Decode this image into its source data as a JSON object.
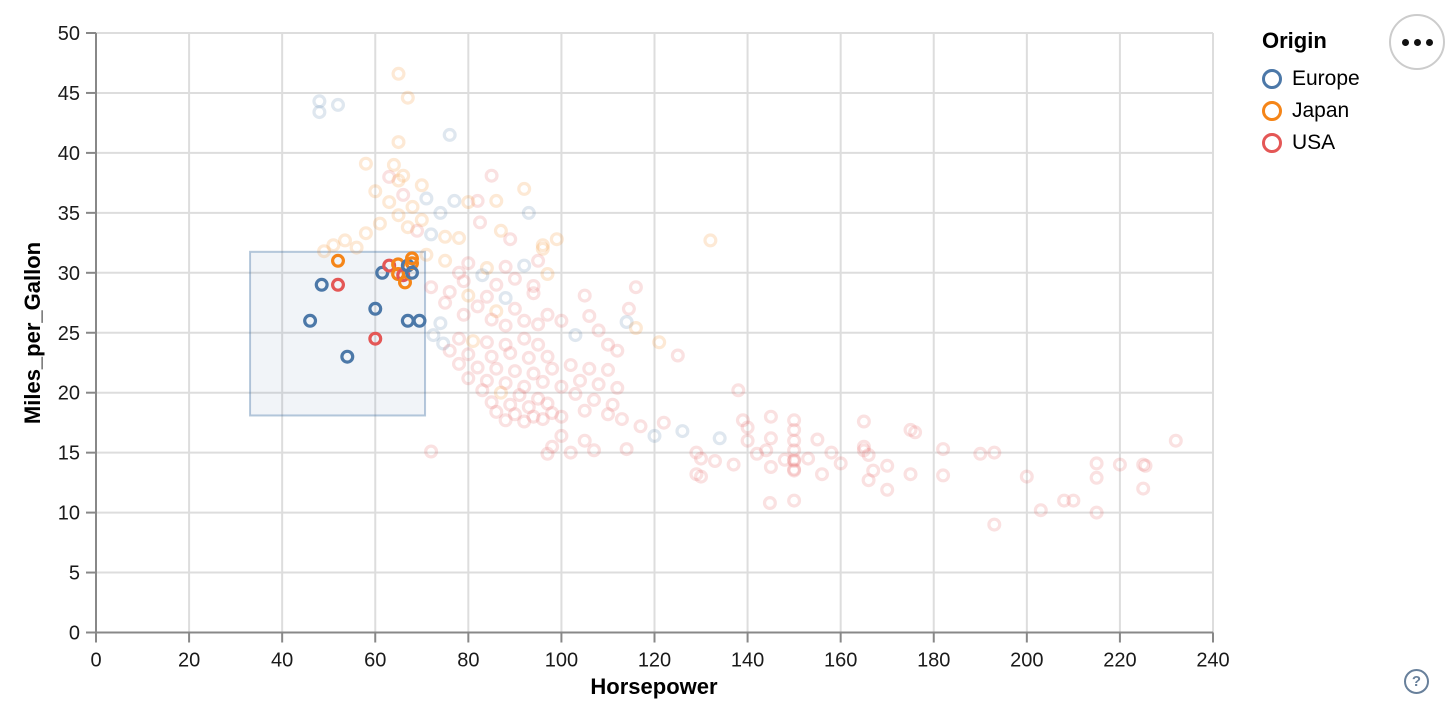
{
  "controls": {
    "menu_button": "options-menu",
    "help_label": "?"
  },
  "chart_data": {
    "type": "scatter",
    "xlabel": "Horsepower",
    "ylabel": "Miles_per_Gallon",
    "xlim": [
      0,
      240
    ],
    "ylim": [
      0,
      50
    ],
    "x_ticks": [
      0,
      20,
      40,
      60,
      80,
      100,
      120,
      140,
      160,
      180,
      200,
      220,
      240
    ],
    "y_ticks": [
      0,
      5,
      10,
      15,
      20,
      25,
      30,
      35,
      40,
      45,
      50
    ],
    "grid": true,
    "grid_color": "#dddddd",
    "axis_color": "#888888",
    "legend": {
      "title": "Origin",
      "position": "right",
      "items": [
        {
          "label": "Europe",
          "color": "#4c78a8"
        },
        {
          "label": "Japan",
          "color": "#f58518"
        },
        {
          "label": "USA",
          "color": "#e45756"
        }
      ]
    },
    "origin_codes": {
      "E": "Europe",
      "J": "Japan",
      "U": "USA"
    },
    "origin_colors": {
      "E": "#4c78a8",
      "J": "#f58518",
      "U": "#e45756"
    },
    "unselected_opacity": 0.18,
    "brush": {
      "x": [
        33.1,
        70.7
      ],
      "y": [
        18.1,
        31.75
      ],
      "fill": "#4c78a8",
      "fill_opacity": 0.08,
      "stroke": "#4c78a8",
      "stroke_opacity": 0.4
    },
    "points": [
      [
        65,
        46.6,
        "J",
        0
      ],
      [
        48,
        44.3,
        "E",
        0
      ],
      [
        48,
        43.4,
        "E",
        0
      ],
      [
        52,
        44,
        "E",
        0
      ],
      [
        67,
        44.6,
        "J",
        0
      ],
      [
        76,
        41.5,
        "E",
        0
      ],
      [
        65,
        40.9,
        "J",
        0
      ],
      [
        58,
        39.1,
        "J",
        0
      ],
      [
        64,
        39,
        "J",
        0
      ],
      [
        66,
        38.1,
        "J",
        0
      ],
      [
        63,
        38,
        "U",
        0
      ],
      [
        65,
        37.7,
        "J",
        0
      ],
      [
        70,
        37.3,
        "J",
        0
      ],
      [
        60,
        36.8,
        "J",
        0
      ],
      [
        66,
        36.5,
        "U",
        0
      ],
      [
        71,
        36.2,
        "E",
        0
      ],
      [
        63,
        35.9,
        "J",
        0
      ],
      [
        68,
        35.5,
        "J",
        0
      ],
      [
        74,
        35,
        "E",
        0
      ],
      [
        65,
        34.8,
        "J",
        0
      ],
      [
        70,
        34.4,
        "J",
        0
      ],
      [
        61,
        34.1,
        "J",
        0
      ],
      [
        67,
        33.8,
        "J",
        0
      ],
      [
        72,
        33.2,
        "E",
        0
      ],
      [
        69,
        33.5,
        "U",
        0
      ],
      [
        58,
        33.3,
        "J",
        0
      ],
      [
        75,
        33,
        "J",
        0
      ],
      [
        78,
        32.9,
        "J",
        0
      ],
      [
        77,
        36,
        "E",
        0
      ],
      [
        51,
        32.3,
        "J",
        0
      ],
      [
        53.5,
        32.7,
        "J",
        0
      ],
      [
        49,
        31.8,
        "J",
        0
      ],
      [
        56,
        32.1,
        "J",
        0
      ],
      [
        85,
        38.1,
        "U",
        0
      ],
      [
        92,
        37,
        "J",
        0
      ],
      [
        82,
        36,
        "U",
        0
      ],
      [
        86,
        36,
        "J",
        0
      ],
      [
        80,
        35.9,
        "J",
        0
      ],
      [
        93,
        35,
        "E",
        0
      ],
      [
        82.5,
        34.2,
        "U",
        0
      ],
      [
        87,
        33.5,
        "J",
        0
      ],
      [
        89,
        32.8,
        "U",
        0
      ],
      [
        96,
        32.3,
        "J",
        0
      ],
      [
        99,
        32.8,
        "J",
        0
      ],
      [
        96,
        32,
        "J",
        0
      ],
      [
        71,
        31.5,
        "J",
        0
      ],
      [
        75,
        31,
        "J",
        0
      ],
      [
        80,
        30.8,
        "U",
        0
      ],
      [
        84,
        30.4,
        "J",
        0
      ],
      [
        78,
        30,
        "U",
        0
      ],
      [
        88,
        30.5,
        "U",
        0
      ],
      [
        92,
        30.6,
        "E",
        0
      ],
      [
        95,
        31,
        "U",
        0
      ],
      [
        83,
        29.8,
        "E",
        0
      ],
      [
        90,
        29.5,
        "U",
        0
      ],
      [
        97,
        29.9,
        "J",
        0
      ],
      [
        79,
        29.3,
        "U",
        0
      ],
      [
        86,
        29,
        "U",
        0
      ],
      [
        94,
        28.9,
        "U",
        0
      ],
      [
        72,
        28.8,
        "U",
        0
      ],
      [
        76,
        28.4,
        "U",
        0
      ],
      [
        80,
        28.1,
        "J",
        0
      ],
      [
        84,
        28,
        "U",
        0
      ],
      [
        88,
        27.9,
        "E",
        0
      ],
      [
        75,
        27.5,
        "U",
        0
      ],
      [
        82,
        27.2,
        "U",
        0
      ],
      [
        90,
        27,
        "U",
        0
      ],
      [
        94,
        28.3,
        "U",
        0
      ],
      [
        86,
        26.8,
        "J",
        0
      ],
      [
        79,
        26.5,
        "U",
        0
      ],
      [
        85,
        26.1,
        "U",
        0
      ],
      [
        92,
        26,
        "U",
        0
      ],
      [
        97,
        26.5,
        "U",
        0
      ],
      [
        100,
        26,
        "U",
        0
      ],
      [
        74,
        25.8,
        "E",
        0
      ],
      [
        88,
        25.6,
        "U",
        0
      ],
      [
        95,
        25.7,
        "U",
        0
      ],
      [
        105,
        28.1,
        "U",
        0
      ],
      [
        106,
        26.4,
        "U",
        0
      ],
      [
        116,
        28.8,
        "U",
        0
      ],
      [
        114.5,
        27,
        "U",
        0
      ],
      [
        114,
        25.9,
        "E",
        0
      ],
      [
        116,
        25.4,
        "J",
        0
      ],
      [
        121,
        24.2,
        "J",
        0
      ],
      [
        125,
        23.1,
        "U",
        0
      ],
      [
        110,
        24,
        "U",
        0
      ],
      [
        108,
        25.2,
        "U",
        0
      ],
      [
        103,
        24.8,
        "E",
        0
      ],
      [
        112,
        23.5,
        "U",
        0
      ],
      [
        132,
        32.7,
        "J",
        0
      ],
      [
        72.5,
        24.8,
        "E",
        0
      ],
      [
        74.6,
        24.1,
        "E",
        0
      ],
      [
        78,
        24.5,
        "U",
        0
      ],
      [
        81,
        24.3,
        "J",
        0
      ],
      [
        84,
        24.2,
        "U",
        0
      ],
      [
        88,
        24,
        "U",
        0
      ],
      [
        92,
        24.5,
        "U",
        0
      ],
      [
        95,
        24,
        "U",
        0
      ],
      [
        76,
        23.5,
        "U",
        0
      ],
      [
        80,
        23.2,
        "U",
        0
      ],
      [
        85,
        23,
        "U",
        0
      ],
      [
        89,
        23.3,
        "U",
        0
      ],
      [
        93,
        22.9,
        "U",
        0
      ],
      [
        97,
        23,
        "U",
        0
      ],
      [
        78,
        22.4,
        "U",
        0
      ],
      [
        82,
        22.1,
        "U",
        0
      ],
      [
        86,
        22,
        "U",
        0
      ],
      [
        90,
        21.8,
        "U",
        0
      ],
      [
        94,
        21.6,
        "U",
        0
      ],
      [
        98,
        22,
        "U",
        0
      ],
      [
        80,
        21.2,
        "U",
        0
      ],
      [
        84,
        21,
        "U",
        0
      ],
      [
        88,
        20.8,
        "U",
        0
      ],
      [
        92,
        20.5,
        "U",
        0
      ],
      [
        96,
        20.9,
        "U",
        0
      ],
      [
        100,
        20.5,
        "U",
        0
      ],
      [
        83,
        20.2,
        "U",
        0
      ],
      [
        87,
        20,
        "J",
        0
      ],
      [
        91,
        19.8,
        "U",
        0
      ],
      [
        95,
        19.5,
        "U",
        0
      ],
      [
        85,
        19.2,
        "U",
        0
      ],
      [
        89,
        19,
        "U",
        0
      ],
      [
        93,
        18.8,
        "U",
        0
      ],
      [
        97,
        19.1,
        "U",
        0
      ],
      [
        86,
        18.4,
        "U",
        0
      ],
      [
        90,
        18.2,
        "U",
        0
      ],
      [
        94,
        18,
        "U",
        0
      ],
      [
        98,
        18.3,
        "U",
        0
      ],
      [
        88,
        17.7,
        "U",
        0
      ],
      [
        92,
        17.6,
        "U",
        0
      ],
      [
        96,
        17.8,
        "U",
        0
      ],
      [
        100,
        18,
        "U",
        0
      ],
      [
        102,
        22.3,
        "U",
        0
      ],
      [
        106,
        22,
        "U",
        0
      ],
      [
        110,
        21.9,
        "U",
        0
      ],
      [
        104,
        21,
        "U",
        0
      ],
      [
        108,
        20.7,
        "U",
        0
      ],
      [
        112,
        20.4,
        "U",
        0
      ],
      [
        103,
        19.9,
        "U",
        0
      ],
      [
        107,
        19.4,
        "U",
        0
      ],
      [
        111,
        19,
        "U",
        0
      ],
      [
        105,
        18.5,
        "U",
        0
      ],
      [
        110,
        18.2,
        "U",
        0
      ],
      [
        113,
        17.8,
        "U",
        0
      ],
      [
        72,
        15.1,
        "U",
        0
      ],
      [
        100,
        16.4,
        "U",
        0
      ],
      [
        105,
        16,
        "U",
        0
      ],
      [
        98,
        15.5,
        "U",
        0
      ],
      [
        102,
        15,
        "U",
        0
      ],
      [
        97,
        14.9,
        "U",
        0
      ],
      [
        107,
        15.2,
        "U",
        0
      ],
      [
        117,
        17.2,
        "U",
        0
      ],
      [
        120,
        16.4,
        "E",
        0
      ],
      [
        126,
        16.8,
        "E",
        0
      ],
      [
        134,
        16.2,
        "E",
        0
      ],
      [
        122,
        17.5,
        "U",
        0
      ],
      [
        129,
        15,
        "U",
        0
      ],
      [
        114,
        15.3,
        "U",
        0
      ],
      [
        130,
        14.5,
        "U",
        0
      ],
      [
        129,
        13.2,
        "U",
        0
      ],
      [
        130,
        13,
        "U",
        0
      ],
      [
        133,
        14.3,
        "U",
        0
      ],
      [
        137,
        14,
        "U",
        0
      ],
      [
        138,
        20.2,
        "U",
        0
      ],
      [
        139,
        17.7,
        "U",
        0
      ],
      [
        140,
        17.1,
        "U",
        0
      ],
      [
        140,
        16,
        "U",
        0
      ],
      [
        142,
        14.9,
        "U",
        0
      ],
      [
        144,
        15.2,
        "U",
        0
      ],
      [
        145,
        18,
        "U",
        0
      ],
      [
        145,
        16.2,
        "U",
        0
      ],
      [
        145,
        13.8,
        "U",
        0
      ],
      [
        144.8,
        10.8,
        "U",
        0
      ],
      [
        148,
        14.4,
        "U",
        0
      ],
      [
        150,
        17.7,
        "U",
        0
      ],
      [
        150,
        16.9,
        "U",
        0
      ],
      [
        150,
        16,
        "U",
        0
      ],
      [
        150,
        15.2,
        "U",
        0
      ],
      [
        150,
        14.4,
        "U",
        0
      ],
      [
        150,
        14.3,
        "U",
        0
      ],
      [
        150,
        13.6,
        "U",
        0
      ],
      [
        150,
        13.5,
        "U",
        0
      ],
      [
        150,
        11,
        "U",
        0
      ],
      [
        153,
        14.5,
        "U",
        0
      ],
      [
        155,
        16.1,
        "U",
        0
      ],
      [
        156,
        13.2,
        "U",
        0
      ],
      [
        158,
        15,
        "U",
        0
      ],
      [
        160,
        14.1,
        "U",
        0
      ],
      [
        165,
        17.6,
        "U",
        0
      ],
      [
        165,
        15.5,
        "U",
        0
      ],
      [
        165,
        15.2,
        "U",
        0
      ],
      [
        166,
        14.8,
        "U",
        0
      ],
      [
        167,
        13.5,
        "U",
        0
      ],
      [
        166,
        12.7,
        "U",
        0
      ],
      [
        170,
        13.9,
        "U",
        0
      ],
      [
        170,
        11.9,
        "U",
        0
      ],
      [
        175,
        16.9,
        "U",
        0
      ],
      [
        176,
        16.7,
        "U",
        0
      ],
      [
        175,
        13.2,
        "U",
        0
      ],
      [
        182,
        15.3,
        "U",
        0
      ],
      [
        182,
        13.1,
        "U",
        0
      ],
      [
        190,
        14.9,
        "U",
        0
      ],
      [
        193,
        15,
        "U",
        0
      ],
      [
        200,
        13,
        "U",
        0
      ],
      [
        193,
        9,
        "U",
        0
      ],
      [
        203,
        10.2,
        "U",
        0
      ],
      [
        208,
        11,
        "U",
        0
      ],
      [
        210,
        11,
        "U",
        0
      ],
      [
        215,
        14.1,
        "U",
        0
      ],
      [
        215,
        12.9,
        "U",
        0
      ],
      [
        220,
        14,
        "U",
        0
      ],
      [
        225,
        14,
        "U",
        0
      ],
      [
        225.5,
        13.9,
        "U",
        0
      ],
      [
        225,
        12,
        "U",
        0
      ],
      [
        215,
        10,
        "U",
        0
      ],
      [
        232,
        16,
        "U",
        0
      ],
      [
        46,
        26,
        "E",
        1
      ],
      [
        48.5,
        29,
        "E",
        1
      ],
      [
        52,
        29,
        "U",
        1
      ],
      [
        52,
        31,
        "J",
        1
      ],
      [
        54,
        23,
        "E",
        1
      ],
      [
        60,
        27,
        "E",
        1
      ],
      [
        60,
        24.5,
        "U",
        1
      ],
      [
        61.5,
        30,
        "E",
        1
      ],
      [
        63,
        30.6,
        "U",
        1
      ],
      [
        64.9,
        30.7,
        "J",
        1
      ],
      [
        64.9,
        29.9,
        "J",
        1
      ],
      [
        66,
        29.8,
        "U",
        1
      ],
      [
        66.4,
        29.2,
        "J",
        1
      ],
      [
        67,
        30.6,
        "E",
        1
      ],
      [
        67.9,
        31.2,
        "J",
        1
      ],
      [
        67.9,
        30.8,
        "J",
        1
      ],
      [
        67.9,
        30,
        "E",
        1
      ],
      [
        67,
        26,
        "E",
        1
      ],
      [
        69.5,
        26,
        "E",
        1
      ]
    ]
  }
}
